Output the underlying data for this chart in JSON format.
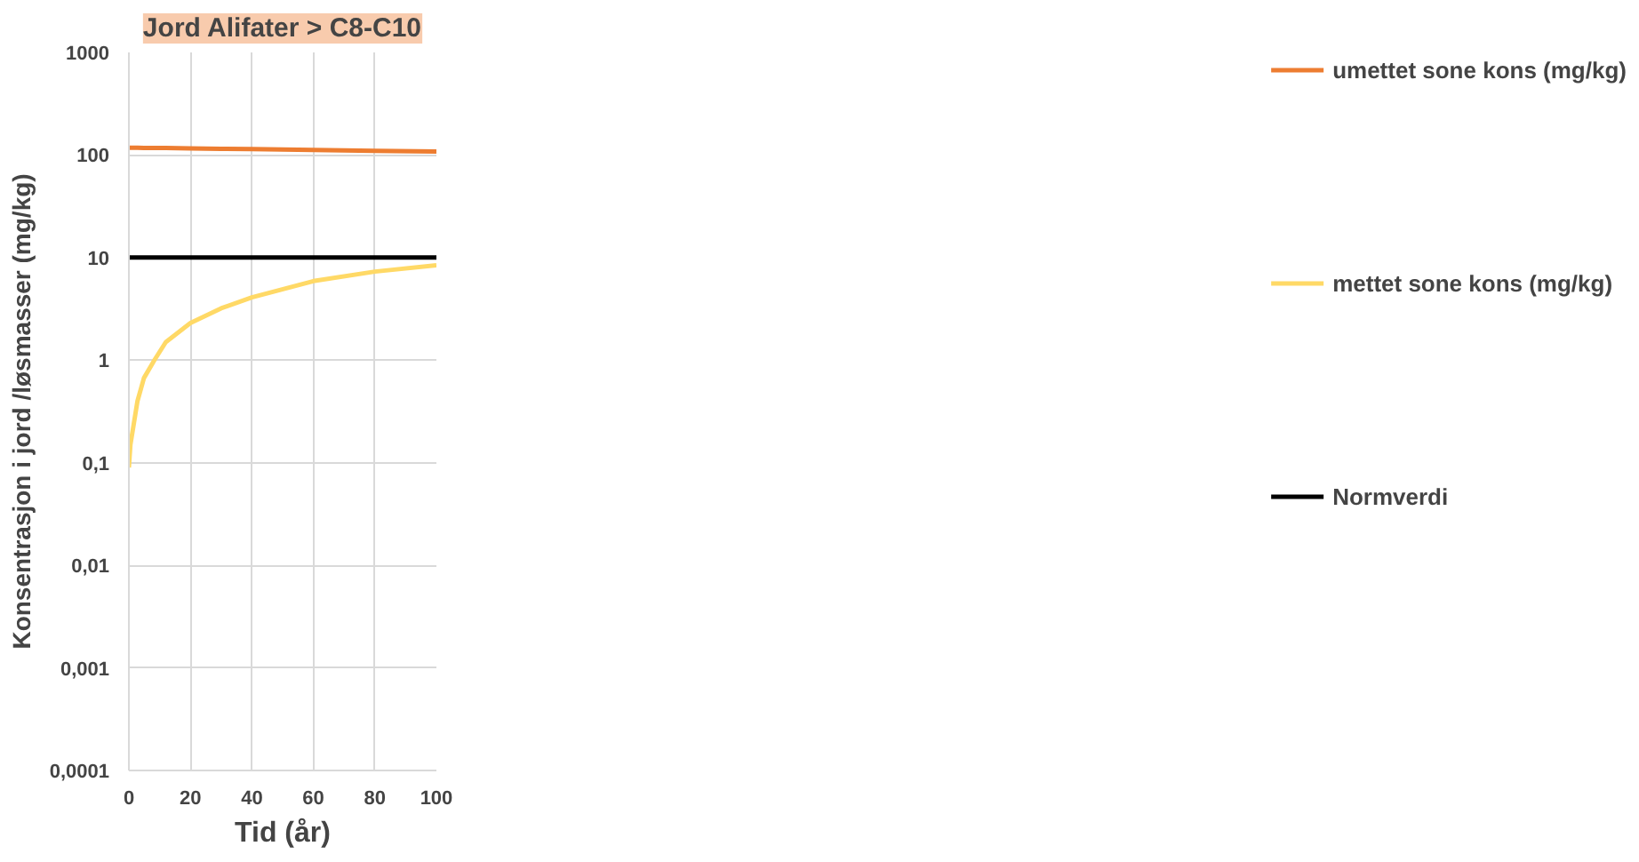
{
  "chart_data": {
    "type": "line",
    "title": "Jord Alifater > C8-C10",
    "xlabel": "Tid (år)",
    "ylabel": "Konsentrasjon i jord /løsmasser (mg/kg)",
    "x": [
      0,
      0.5,
      1.4,
      2.8,
      4.9,
      8.3,
      12,
      20,
      30,
      40,
      60,
      80,
      100
    ],
    "series": [
      {
        "name": "umettet sone kons (mg/kg)",
        "color": "#ed7d31",
        "values": [
          118,
          118,
          118,
          118,
          117,
          117,
          117,
          116,
          115,
          114,
          112,
          110,
          108
        ]
      },
      {
        "name": "mettet sone kons (mg/kg)",
        "color": "#ffd966",
        "values": [
          0.09,
          0.15,
          0.22,
          0.4,
          0.67,
          1.0,
          1.5,
          2.3,
          3.2,
          4.1,
          5.9,
          7.3,
          8.4
        ]
      },
      {
        "name": "Normverdi",
        "color": "#000000",
        "values": [
          10,
          10,
          10,
          10,
          10,
          10,
          10,
          10,
          10,
          10,
          10,
          10,
          10
        ]
      }
    ],
    "log": "y",
    "xlim": [
      0,
      100
    ],
    "xticks": [
      0,
      20,
      40,
      60,
      80,
      100
    ],
    "ylim": [
      0.0001,
      1000
    ],
    "yticks": [
      {
        "value": 0.0001,
        "label": "0,0001"
      },
      {
        "value": 0.001,
        "label": "0,001"
      },
      {
        "value": 0.01,
        "label": "0,01"
      },
      {
        "value": 0.1,
        "label": "0,1"
      },
      1,
      10,
      100,
      1000
    ],
    "grid": true,
    "legend": "right",
    "marker": "none",
    "line_style": "solid"
  }
}
